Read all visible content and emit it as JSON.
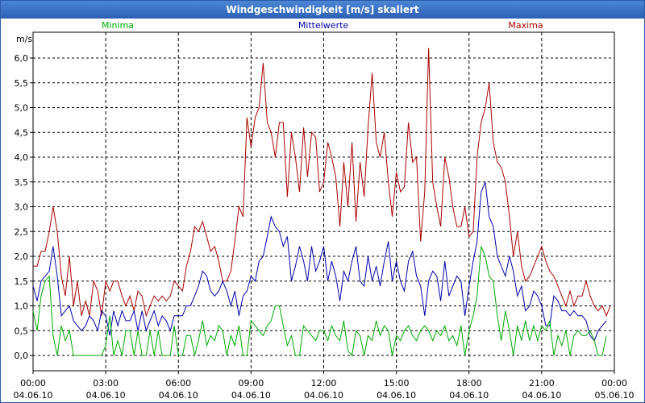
{
  "window": {
    "title": "Windgeschwindigkeit [m/s] skaliert"
  },
  "chart_data": {
    "type": "line",
    "ylabel": "m/s",
    "ylim": [
      0,
      6.3
    ],
    "y_ticks": [
      "0,0",
      "0,5",
      "1,0",
      "1,5",
      "2,0",
      "2,5",
      "3,0",
      "3,5",
      "4,0",
      "4,5",
      "5,0",
      "5,5",
      "6,0"
    ],
    "x_ticks": [
      {
        "time": "00:00",
        "date": "04.06.10"
      },
      {
        "time": "03:00",
        "date": "04.06.10"
      },
      {
        "time": "06:00",
        "date": "04.06.10"
      },
      {
        "time": "09:00",
        "date": "04.06.10"
      },
      {
        "time": "12:00",
        "date": "04.06.10"
      },
      {
        "time": "15:00",
        "date": "04.06.10"
      },
      {
        "time": "18:00",
        "date": "04.06.10"
      },
      {
        "time": "21:00",
        "date": "04.06.10"
      },
      {
        "time": "00:00",
        "date": "05.06.10"
      }
    ],
    "grid": true,
    "legend_position": "top",
    "x_hours": [
      0,
      0.17,
      0.33,
      0.5,
      0.67,
      0.83,
      1,
      1.17,
      1.33,
      1.5,
      1.67,
      1.83,
      2,
      2.17,
      2.33,
      2.5,
      2.67,
      2.83,
      3,
      3.17,
      3.33,
      3.5,
      3.67,
      3.83,
      4,
      4.17,
      4.33,
      4.5,
      4.67,
      4.83,
      5,
      5.17,
      5.33,
      5.5,
      5.67,
      5.83,
      6,
      6.17,
      6.33,
      6.5,
      6.67,
      6.83,
      7,
      7.17,
      7.33,
      7.5,
      7.67,
      7.83,
      8,
      8.17,
      8.33,
      8.5,
      8.67,
      8.83,
      9,
      9.17,
      9.33,
      9.5,
      9.67,
      9.83,
      10,
      10.17,
      10.33,
      10.5,
      10.67,
      10.83,
      11,
      11.17,
      11.33,
      11.5,
      11.67,
      11.83,
      12,
      12.17,
      12.33,
      12.5,
      12.67,
      12.83,
      13,
      13.17,
      13.33,
      13.5,
      13.67,
      13.83,
      14,
      14.17,
      14.33,
      14.5,
      14.67,
      14.83,
      15,
      15.17,
      15.33,
      15.5,
      15.67,
      15.83,
      16,
      16.17,
      16.33,
      16.5,
      16.67,
      16.83,
      17,
      17.17,
      17.33,
      17.5,
      17.67,
      17.83,
      18,
      18.17,
      18.33,
      18.5,
      18.67,
      18.83,
      19,
      19.17,
      19.33,
      19.5,
      19.67,
      19.83,
      20,
      20.17,
      20.33,
      20.5,
      20.67,
      20.83,
      21,
      21.17,
      21.33,
      21.5,
      21.67,
      21.83,
      22,
      22.17,
      22.33,
      22.5,
      22.67,
      22.83,
      23,
      23.17,
      23.33,
      23.5,
      23.67,
      23.83,
      24
    ],
    "series": [
      {
        "name": "Minima",
        "color": "#00aa00",
        "values": [
          0.9,
          0.5,
          1.2,
          1.5,
          1.6,
          0.4,
          0.0,
          0.6,
          0.3,
          0.5,
          0.0,
          0.0,
          0.0,
          0.0,
          0.0,
          0.0,
          0.0,
          0.0,
          0.2,
          0.8,
          0.0,
          0.3,
          0.0,
          0.5,
          0.5,
          0.0,
          0.5,
          0.0,
          0.0,
          0.5,
          0.0,
          0.5,
          0.0,
          0.0,
          0.0,
          0.6,
          0.0,
          0.0,
          0.4,
          0.4,
          0.0,
          0.3,
          0.7,
          0.2,
          0.4,
          0.3,
          0.6,
          0.5,
          0.0,
          0.4,
          0.2,
          0.6,
          0.0,
          0.0,
          0.7,
          0.6,
          0.5,
          0.4,
          0.6,
          0.7,
          1.0,
          1.0,
          0.6,
          0.2,
          0.4,
          0.0,
          0.0,
          0.6,
          0.5,
          0.4,
          0.3,
          0.5,
          0.5,
          0.3,
          0.6,
          0.4,
          0.3,
          0.7,
          0.1,
          0.0,
          0.5,
          0.4,
          0.0,
          0.4,
          0.3,
          0.7,
          0.4,
          0.6,
          0.5,
          0.0,
          0.4,
          0.3,
          0.5,
          0.6,
          0.4,
          0.3,
          0.5,
          0.6,
          0.5,
          0.3,
          0.5,
          0.4,
          0.6,
          0.3,
          0.4,
          0.2,
          0.6,
          0.0,
          0.5,
          0.8,
          1.2,
          2.2,
          2.0,
          1.6,
          1.5,
          0.8,
          0.3,
          0.9,
          0.5,
          0.0,
          0.6,
          0.3,
          0.7,
          0.3,
          0.6,
          0.3,
          0.6,
          0.5,
          0.7,
          0.0,
          0.4,
          0.2,
          0.5,
          0.0,
          0.4,
          0.5,
          0.4,
          0.4,
          0.5,
          0.3,
          0.0,
          0.0,
          0.4
        ]
      },
      {
        "name": "Mittelwerte",
        "color": "#0000aa",
        "values": [
          1.4,
          1.1,
          1.5,
          1.6,
          1.7,
          2.2,
          1.6,
          0.8,
          0.9,
          1.0,
          0.7,
          0.6,
          0.5,
          0.6,
          0.8,
          0.7,
          0.5,
          0.9,
          0.8,
          0.4,
          0.9,
          0.6,
          0.9,
          0.7,
          0.7,
          0.9,
          0.5,
          0.9,
          0.5,
          0.7,
          0.9,
          0.6,
          0.8,
          0.7,
          0.5,
          0.8,
          0.8,
          0.8,
          1.0,
          1.0,
          1.2,
          1.4,
          1.7,
          1.6,
          1.3,
          1.2,
          1.3,
          1.5,
          1.3,
          1.0,
          1.3,
          0.8,
          1.2,
          1.3,
          1.6,
          1.5,
          1.9,
          2.0,
          2.4,
          2.8,
          2.6,
          2.5,
          2.2,
          2.4,
          1.5,
          1.8,
          2.2,
          1.9,
          1.5,
          2.2,
          1.7,
          1.9,
          2.2,
          1.5,
          1.9,
          1.6,
          1.1,
          1.7,
          1.5,
          1.9,
          2.2,
          1.5,
          1.4,
          2.0,
          1.5,
          1.8,
          1.4,
          1.9,
          2.3,
          1.5,
          1.9,
          1.5,
          1.3,
          1.9,
          2.1,
          1.6,
          1.4,
          0.8,
          1.5,
          1.7,
          1.6,
          1.1,
          1.9,
          1.2,
          1.4,
          1.6,
          1.5,
          0.8,
          1.4,
          1.9,
          2.3,
          3.3,
          3.5,
          2.8,
          2.6,
          2.0,
          1.8,
          1.6,
          2.0,
          1.7,
          1.2,
          1.4,
          0.9,
          1.0,
          1.3,
          1.2,
          1.0,
          0.6,
          0.6,
          1.2,
          1.1,
          0.9,
          0.9,
          0.8,
          0.9,
          0.8,
          0.8,
          0.7,
          0.4,
          0.3,
          0.5,
          0.6,
          0.7
        ]
      },
      {
        "name": "Maxima",
        "color": "#aa0000",
        "values": [
          1.8,
          1.8,
          2.1,
          2.1,
          2.5,
          3.0,
          2.5,
          1.6,
          1.2,
          2.0,
          1.0,
          1.5,
          0.8,
          1.1,
          0.8,
          1.5,
          1.3,
          0.8,
          1.5,
          1.3,
          1.5,
          1.5,
          1.2,
          1.0,
          1.2,
          0.9,
          1.3,
          1.2,
          0.8,
          1.0,
          1.2,
          1.1,
          1.2,
          1.1,
          1.2,
          1.5,
          1.4,
          1.3,
          1.8,
          2.1,
          2.6,
          2.5,
          2.7,
          2.4,
          2.1,
          2.2,
          1.9,
          1.5,
          1.5,
          1.7,
          2.3,
          3.0,
          2.8,
          4.8,
          4.2,
          4.8,
          5.0,
          5.9,
          4.7,
          4.5,
          4.0,
          4.7,
          4.7,
          3.2,
          4.5,
          4.0,
          3.3,
          4.6,
          3.6,
          4.5,
          4.4,
          3.3,
          3.5,
          4.3,
          4.0,
          3.6,
          2.6,
          3.9,
          3.0,
          4.3,
          2.7,
          3.9,
          3.2,
          4.6,
          5.7,
          4.3,
          4.0,
          4.5,
          3.5,
          2.8,
          3.7,
          3.3,
          3.4,
          4.7,
          3.9,
          4.0,
          2.3,
          3.3,
          6.2,
          3.5,
          3.0,
          2.6,
          4.0,
          3.6,
          3.0,
          2.6,
          2.6,
          3.0,
          2.4,
          2.5,
          4.0,
          4.7,
          5.0,
          5.5,
          4.3,
          3.9,
          3.8,
          3.5,
          2.8,
          2.0,
          2.5,
          1.8,
          1.5,
          1.6,
          1.8,
          2.0,
          2.2,
          1.9,
          1.7,
          1.6,
          1.4,
          1.2,
          1.0,
          1.3,
          1.0,
          1.2,
          1.2,
          1.5,
          1.2,
          1.0,
          0.9,
          1.0,
          0.8,
          1.0
        ]
      }
    ]
  }
}
